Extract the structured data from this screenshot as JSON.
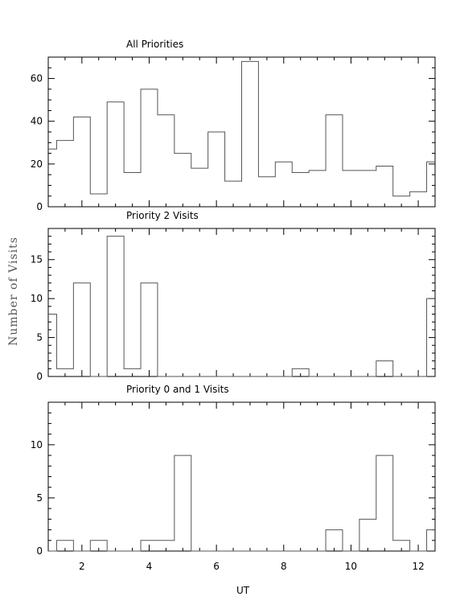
{
  "chart_data": {
    "type": "histogram-stack",
    "shared_x": {
      "label": "UT",
      "xlim": [
        1.0,
        12.5
      ],
      "ticks": [
        2,
        4,
        6,
        8,
        10,
        12
      ],
      "minor_step": 0.5,
      "bin_edges": [
        1.0,
        1.25,
        1.75,
        2.25,
        2.75,
        3.25,
        3.75,
        4.25,
        4.75,
        5.25,
        5.75,
        6.25,
        6.75,
        7.25,
        7.75,
        8.25,
        8.75,
        9.25,
        9.75,
        10.25,
        10.75,
        11.25,
        11.75,
        12.25,
        12.5
      ]
    },
    "ylabel": "Number of Visits",
    "panels": [
      {
        "title": "All Priorities",
        "ylim": [
          0,
          70
        ],
        "yticks": [
          0,
          20,
          40,
          60
        ],
        "minor_step": 5,
        "counts": [
          27,
          31,
          42,
          6,
          49,
          16,
          55,
          43,
          25,
          18,
          35,
          12,
          68,
          14,
          21,
          16,
          17,
          43,
          17,
          17,
          19,
          5,
          7,
          21
        ]
      },
      {
        "title": "Priority 2 Visits",
        "ylim": [
          0,
          19
        ],
        "yticks": [
          0,
          5,
          10,
          15
        ],
        "minor_step": 1,
        "counts": [
          8,
          1,
          12,
          0,
          18,
          1,
          12,
          0,
          0,
          0,
          0,
          0,
          0,
          0,
          0,
          1,
          0,
          0,
          0,
          0,
          2,
          0,
          0,
          10
        ]
      },
      {
        "title": "Priority 0 and 1 Visits",
        "ylim": [
          0,
          14
        ],
        "yticks": [
          0,
          5,
          10
        ],
        "minor_step": 1,
        "counts": [
          0,
          1,
          0,
          1,
          0,
          0,
          1,
          1,
          9,
          0,
          0,
          0,
          0,
          0,
          0,
          0,
          0,
          2,
          0,
          3,
          9,
          1,
          0,
          2
        ]
      }
    ]
  }
}
